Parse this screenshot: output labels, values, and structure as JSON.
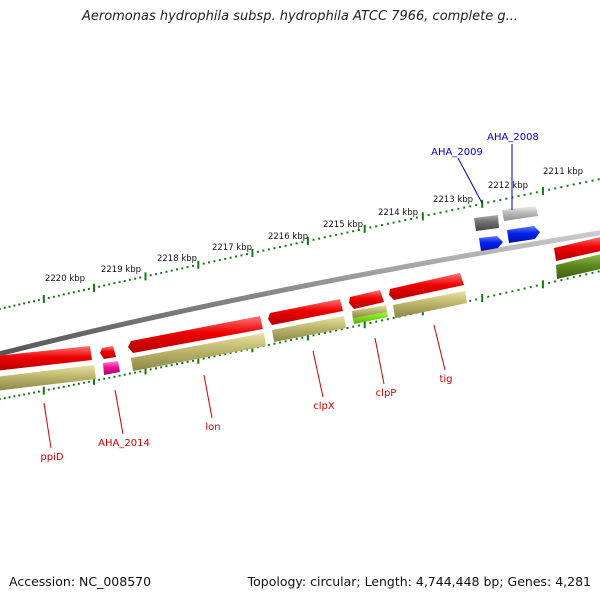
{
  "title": "Aeromonas hydrophila subsp. hydrophila ATCC 7966, complete g...",
  "footer": {
    "accession": "Accession: NC_008570",
    "summary": "Topology: circular; Length: 4,744,448 bp; Genes: 4,281"
  },
  "scale": {
    "labels": [
      "2211 kbp",
      "2212 kbp",
      "2213 kbp",
      "2214 kbp",
      "2215 kbp",
      "2216 kbp",
      "2217 kbp",
      "2218 kbp",
      "2219 kbp",
      "2220 kbp"
    ]
  },
  "genes_upper": [
    {
      "label": "AHA_2008",
      "color": "#0000cc"
    },
    {
      "label": "AHA_2009",
      "color": "#0000cc"
    }
  ],
  "genes_lower": [
    {
      "label": "tig",
      "color": "#cc0000"
    },
    {
      "label": "clpP",
      "color": "#cc0000"
    },
    {
      "label": "clpX",
      "color": "#cc0000"
    },
    {
      "label": "lon",
      "color": "#cc0000"
    },
    {
      "label": "AHA_2014",
      "color": "#cc0000"
    },
    {
      "label": "ppiD",
      "color": "#cc0000"
    }
  ],
  "colors": {
    "forward": "#ee0000",
    "cds": "#b5b168",
    "backbone": "#888888",
    "tick": "#137a13",
    "blue": "#0022ee",
    "gray": "#777777",
    "light_gray": "#bbbbbb",
    "pink": "#ee1199",
    "lime": "#88ee22",
    "olive": "#5f8a22"
  }
}
